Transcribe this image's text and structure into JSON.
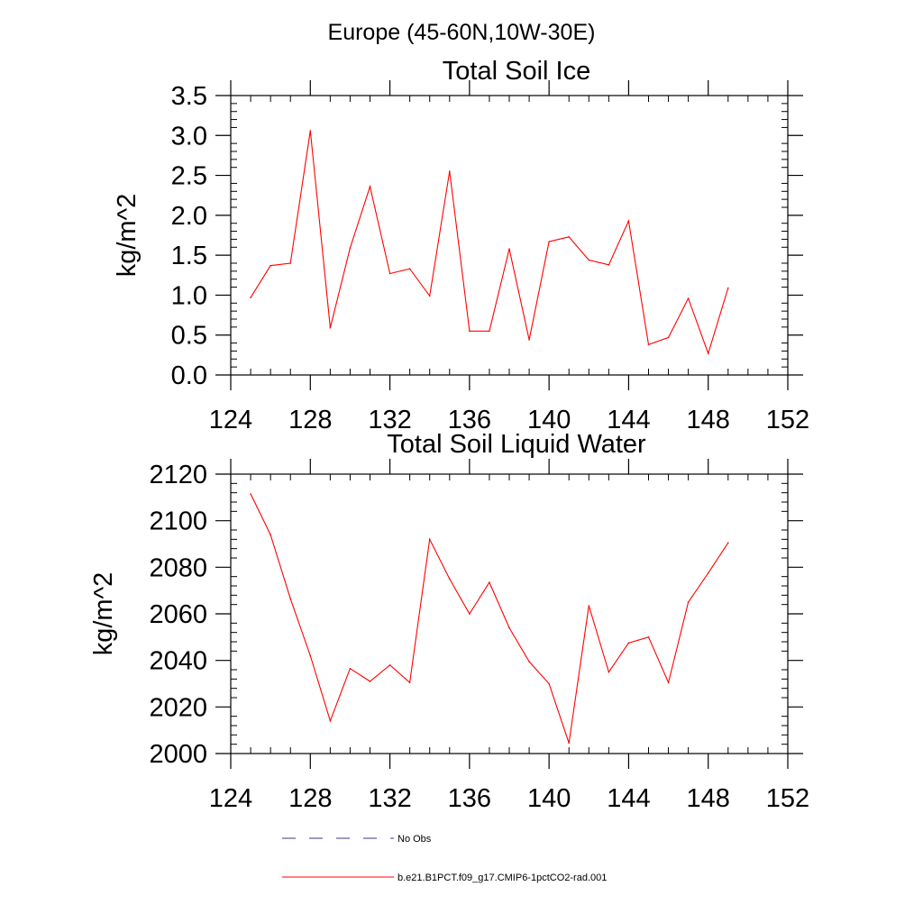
{
  "figure_title": "Europe (45-60N,10W-30E)",
  "legend": [
    {
      "label": "No Obs",
      "color": "#3a3a8a",
      "style": "dashed"
    },
    {
      "label": "b.e21.B1PCT.f09_g17.CMIP6-1pctCO2-rad.001",
      "color": "#ff0000",
      "style": "solid"
    }
  ],
  "chart_data": [
    {
      "type": "line",
      "title": "Total Soil Ice",
      "xlabel": "",
      "ylabel": "kg/m^2",
      "xlim": [
        124,
        152
      ],
      "ylim": [
        0.0,
        3.5
      ],
      "xticks": [
        124,
        128,
        132,
        136,
        140,
        144,
        148,
        152
      ],
      "xtick_labels": [
        "124",
        "128",
        "132",
        "136",
        "140",
        "144",
        "148",
        "152"
      ],
      "yticks": [
        0.0,
        0.5,
        1.0,
        1.5,
        2.0,
        2.5,
        3.0,
        3.5
      ],
      "ytick_labels": [
        "0.0",
        "0.5",
        "1.0",
        "1.5",
        "2.0",
        "2.5",
        "3.0",
        "3.5"
      ],
      "grid": false,
      "series": [
        {
          "color": "#ff0000",
          "x": [
            125,
            126,
            127,
            128,
            129,
            130,
            131,
            132,
            133,
            134,
            135,
            136,
            137,
            138,
            139,
            140,
            141,
            142,
            143,
            144,
            145,
            146,
            147,
            148,
            149
          ],
          "y": [
            0.97,
            1.37,
            1.4,
            3.06,
            0.59,
            1.59,
            2.36,
            1.27,
            1.33,
            0.99,
            2.55,
            0.55,
            0.55,
            1.58,
            0.44,
            1.67,
            1.73,
            1.44,
            1.38,
            1.93,
            0.38,
            0.47,
            0.96,
            0.27,
            1.09
          ]
        }
      ]
    },
    {
      "type": "line",
      "title": "Total Soil Liquid Water",
      "xlabel": "",
      "ylabel": "kg/m^2",
      "xlim": [
        124,
        152
      ],
      "ylim": [
        2000,
        2120
      ],
      "xticks": [
        124,
        128,
        132,
        136,
        140,
        144,
        148,
        152
      ],
      "xtick_labels": [
        "124",
        "128",
        "132",
        "136",
        "140",
        "144",
        "148",
        "152"
      ],
      "yticks": [
        2000,
        2020,
        2040,
        2060,
        2080,
        2100,
        2120
      ],
      "ytick_labels": [
        "2000",
        "2020",
        "2040",
        "2060",
        "2080",
        "2100",
        "2120"
      ],
      "grid": false,
      "series": [
        {
          "color": "#ff0000",
          "x": [
            125,
            126,
            127,
            128,
            129,
            130,
            131,
            132,
            133,
            134,
            135,
            136,
            137,
            138,
            139,
            140,
            141,
            142,
            143,
            144,
            145,
            146,
            147,
            148,
            149
          ],
          "y": [
            2111.5,
            2094,
            2066.5,
            2042,
            2014,
            2036.5,
            2031,
            2038,
            2030.5,
            2092,
            2075,
            2060,
            2073.5,
            2054,
            2039.5,
            2030,
            2004.5,
            2063.5,
            2035,
            2047.5,
            2050,
            2030.5,
            2065,
            2077.5,
            2090.5
          ]
        }
      ]
    }
  ]
}
